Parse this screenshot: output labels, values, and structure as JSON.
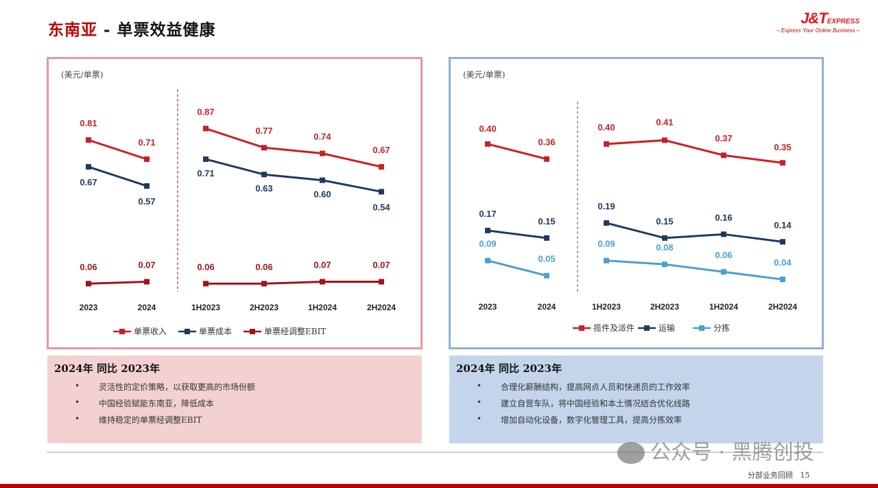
{
  "header": {
    "title_red": "东南亚",
    "title_rest": " - 单票效益健康",
    "logo_main": "J&T",
    "logo_sub": "EXPRESS",
    "logo_tagline": "– Express Your Online Business –"
  },
  "chart_data": [
    {
      "type": "line",
      "unit": "(美元/单票)",
      "categories": [
        "2023",
        "2024",
        "1H2023",
        "2H2023",
        "1H2024",
        "2H2024"
      ],
      "series": [
        {
          "name": "单票收入",
          "color": "#cc1f24",
          "labels": "above",
          "values": [
            0.81,
            0.71,
            0.87,
            0.77,
            0.74,
            0.67
          ]
        },
        {
          "name": "单票成本",
          "color": "#1f3a60",
          "labels": "below",
          "values": [
            0.67,
            0.57,
            0.71,
            0.63,
            0.6,
            0.54
          ]
        },
        {
          "name": "单票经调整EBIT",
          "color": "#a01418",
          "labels": "above",
          "values": [
            0.06,
            0.07,
            0.06,
            0.06,
            0.07,
            0.07
          ]
        }
      ],
      "ylim": [
        0,
        1
      ]
    },
    {
      "type": "line",
      "unit": "(美元/单票)",
      "categories": [
        "2023",
        "2024",
        "1H2023",
        "2H2023",
        "1H2024",
        "2H2024"
      ],
      "series": [
        {
          "name": "揽件及派件",
          "color": "#cc1f24",
          "labels": "above",
          "values": [
            0.4,
            0.36,
            0.4,
            0.41,
            0.37,
            0.35
          ]
        },
        {
          "name": "运输",
          "color": "#1f3a60",
          "labels": "above",
          "values": [
            0.17,
            0.15,
            0.19,
            0.15,
            0.16,
            0.14
          ]
        },
        {
          "name": "分拣",
          "color": "#4a9fd5",
          "labels": "above",
          "values": [
            0.09,
            0.05,
            0.09,
            0.08,
            0.06,
            0.04
          ]
        }
      ],
      "ylim": [
        0,
        0.5
      ]
    }
  ],
  "notes": [
    {
      "heading": "2024年 同比 2023年",
      "items": [
        "灵活性的定价策略，以获取更高的市场份额",
        "中国经验赋能东南亚，降低成本",
        "维持稳定的单票经调整EBIT"
      ]
    },
    {
      "heading": "2024年 同比 2023年",
      "items": [
        "合理化薪酬结构，提高网点人员和快递员的工作效率",
        "建立自营车队，将中国经验和本土情况结合优化线路",
        "增加自动化设备，数字化管理工具，提高分拣效率"
      ]
    }
  ],
  "footer": {
    "section": "分部业务回顾",
    "page": "15"
  },
  "watermark": "公众号 · 黑腾创投"
}
